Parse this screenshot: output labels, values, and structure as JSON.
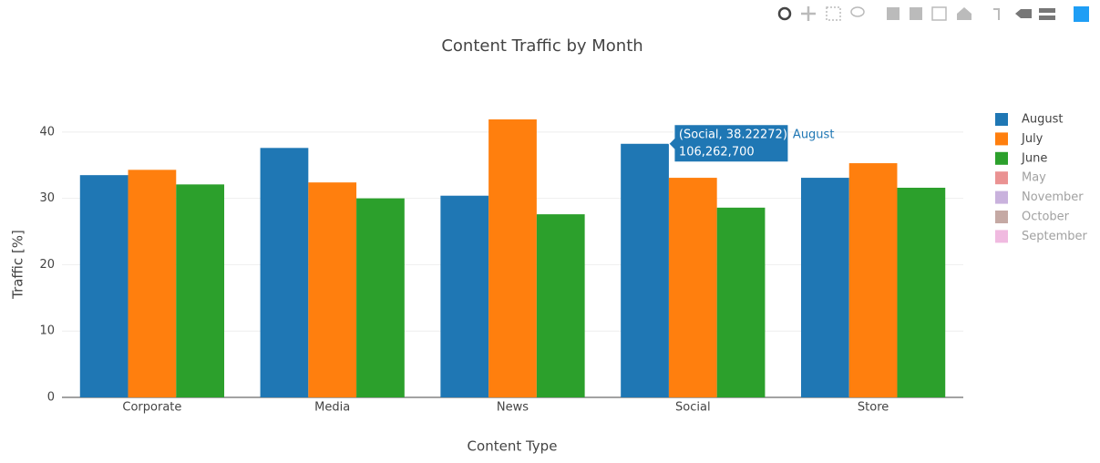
{
  "chart_data": {
    "type": "bar",
    "title": "Content Traffic by Month",
    "xlabel": "Content Type",
    "ylabel": "Traffic [%]",
    "categories": [
      "Corporate",
      "Media",
      "News",
      "Social",
      "Store"
    ],
    "series": [
      {
        "name": "August",
        "color": "#1f77b4",
        "visible": true,
        "values": [
          33.5,
          37.6,
          30.4,
          38.22272,
          33.1
        ]
      },
      {
        "name": "July",
        "color": "#ff7f0e",
        "visible": true,
        "values": [
          34.3,
          32.4,
          41.9,
          33.1,
          35.3
        ]
      },
      {
        "name": "June",
        "color": "#2ca02c",
        "visible": true,
        "values": [
          32.1,
          30.0,
          27.6,
          28.6,
          31.6
        ]
      },
      {
        "name": "May",
        "color": "#d62728",
        "visible": false,
        "values": [
          null,
          null,
          null,
          null,
          null
        ]
      },
      {
        "name": "November",
        "color": "#9467bd",
        "visible": false,
        "values": [
          null,
          null,
          null,
          null,
          null
        ]
      },
      {
        "name": "October",
        "color": "#8c564b",
        "visible": false,
        "values": [
          null,
          null,
          null,
          null,
          null
        ]
      },
      {
        "name": "September",
        "color": "#e377c2",
        "visible": false,
        "values": [
          null,
          null,
          null,
          null,
          null
        ]
      }
    ],
    "ylim": [
      0,
      44.1
    ],
    "yticks": [
      0,
      10,
      20,
      30,
      40
    ],
    "grid": true,
    "legend": "right",
    "tooltip": {
      "series": 0,
      "index": 3,
      "text": "(Social, 38.22272)",
      "extra": "106,262,700",
      "name": "August"
    }
  }
}
